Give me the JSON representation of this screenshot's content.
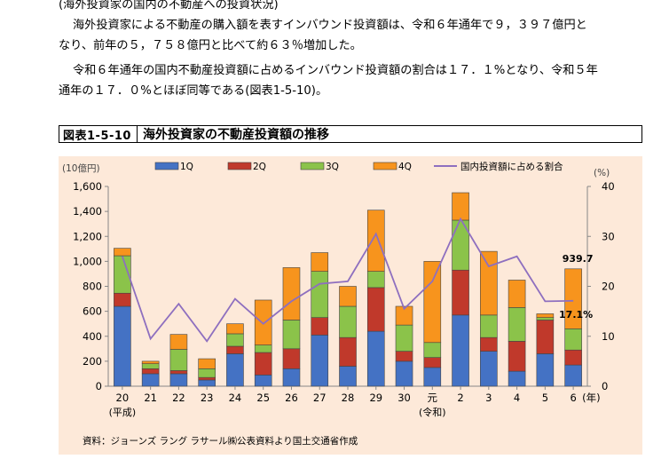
{
  "text": {
    "heading": "(海外投資家の国内の不動産への投資状況)",
    "para1_line1": "海外投資家による不動産の購入額を表すインバウンド投資額は、令和６年通年で９，３９７億円と",
    "para1_line2": "なり、前年の５，７５８億円と比べて約６３％増加した。",
    "para2_line1": "令和６年通年の国内不動産投資額に占めるインバウンド投資額の割合は１７．１%となり、令和５年",
    "para2_line2": "通年の１７．０%とほぼ同等である(図表1-5-10)。"
  },
  "figure": {
    "label": "図表1-5-10",
    "title": "海外投資家の不動産投資額の推移",
    "source": "資料：ジョーンズ ラング ラサール㈱公表資料より国土交通省作成"
  },
  "colors": {
    "q1": "#4472c4",
    "q2": "#c0392b",
    "q3": "#8bc34a",
    "q4": "#f7941d",
    "line": "#8e6fbf",
    "bg": "#fde9d9"
  },
  "chart_data": {
    "type": "bar",
    "stacked": true,
    "categories": [
      "20",
      "21",
      "22",
      "23",
      "24",
      "25",
      "26",
      "27",
      "28",
      "29",
      "30",
      "元",
      "2",
      "3",
      "4",
      "5",
      "6"
    ],
    "category_sublabels": {
      "0": "(平成)",
      "11": "(令和)"
    },
    "x_unit": "(年)",
    "y_unit_left": "(10億円)",
    "y_unit_right": "(%)",
    "ylim_left": [
      0,
      1600
    ],
    "yticks_left": [
      0,
      200,
      400,
      600,
      800,
      1000,
      1200,
      1400,
      1600
    ],
    "yticks_left_labels": [
      "0",
      "200",
      "400",
      "600",
      "800",
      "1,000",
      "1,200",
      "1,400",
      "1,600"
    ],
    "ylim_right": [
      0,
      40
    ],
    "yticks_right": [
      0,
      10,
      20,
      30,
      40
    ],
    "legend_position": "top",
    "series": [
      {
        "name": "1Q",
        "color_key": "q1",
        "values": [
          640,
          100,
          100,
          50,
          260,
          90,
          140,
          410,
          160,
          440,
          200,
          150,
          570,
          280,
          120,
          260,
          170
        ]
      },
      {
        "name": "2Q",
        "color_key": "q2",
        "values": [
          105,
          40,
          25,
          20,
          60,
          180,
          160,
          140,
          230,
          350,
          80,
          80,
          360,
          110,
          240,
          270,
          120
        ]
      },
      {
        "name": "3Q",
        "color_key": "q3",
        "values": [
          300,
          40,
          170,
          70,
          100,
          60,
          230,
          370,
          250,
          130,
          210,
          120,
          400,
          180,
          270,
          20,
          170
        ]
      },
      {
        "name": "4Q",
        "color_key": "q4",
        "values": [
          60,
          20,
          120,
          80,
          80,
          360,
          420,
          150,
          160,
          490,
          150,
          650,
          220,
          510,
          220,
          30,
          480
        ]
      }
    ],
    "line_series": {
      "name": "国内投資額に占める割合",
      "axis": "right",
      "values": [
        26,
        9.5,
        16.5,
        9,
        17.5,
        12.5,
        17,
        20.5,
        21,
        30.5,
        15.5,
        21,
        33.5,
        24,
        26,
        17,
        17.1
      ]
    },
    "annotations": [
      {
        "label": "939.7",
        "category_index": 16,
        "kind": "bar_total"
      },
      {
        "label": "17.1%",
        "category_index": 16,
        "kind": "line_value"
      }
    ]
  }
}
